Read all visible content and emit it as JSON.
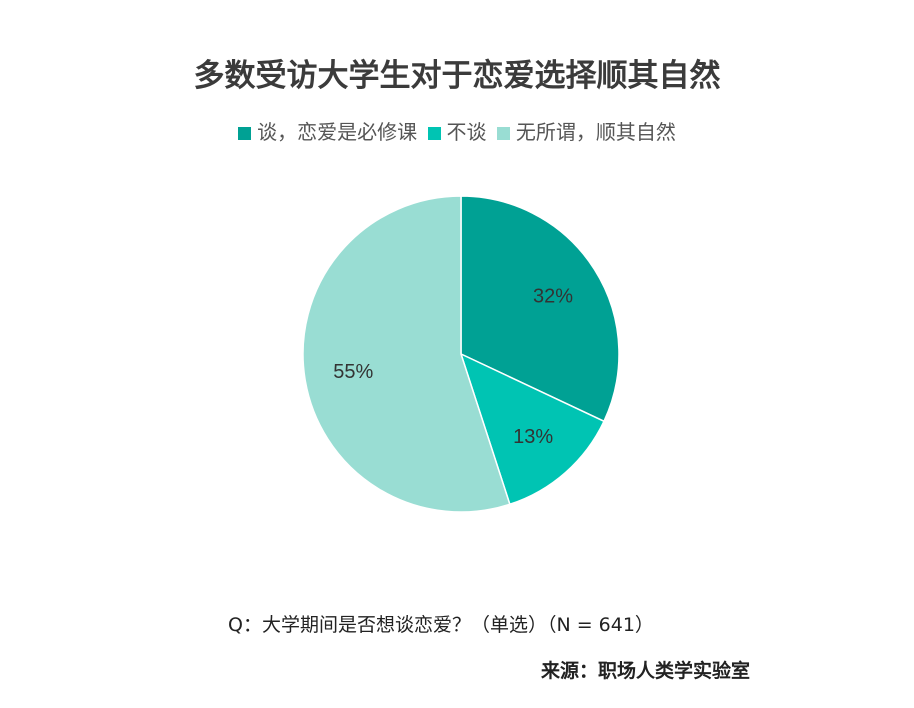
{
  "chart_data": {
    "type": "pie",
    "title": "多数受访大学生对于恋爱选择顺其自然",
    "categories": [
      "谈，恋爱是必修课",
      "不谈",
      "无所谓，顺其自然"
    ],
    "values": [
      32,
      13,
      55
    ],
    "data_labels": [
      "32%",
      "13%",
      "55%"
    ],
    "colors": [
      "#00a194",
      "#00c4b3",
      "#99ddd3"
    ],
    "legend_position": "top",
    "start_angle": "12 o'clock, clockwise"
  },
  "footnote": "Q：大学期间是否想谈恋爱？（单选）（N = 641）",
  "source": "来源：职场人类学实验室"
}
